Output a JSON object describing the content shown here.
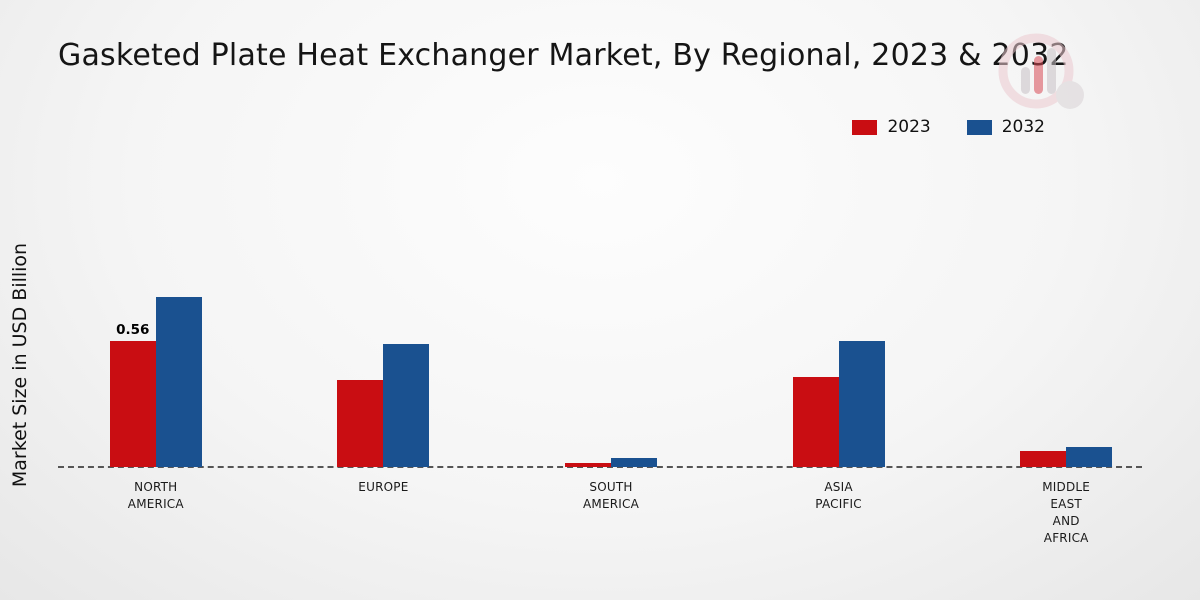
{
  "header": {
    "title": "Gasketed Plate Heat Exchanger Market, By Regional, 2023 & 2032"
  },
  "icons": {
    "brand_logo": "bar-chart-circle-watermark"
  },
  "colors": {
    "series_2023": "#c90d12",
    "series_2032": "#1a5190",
    "footer_red_band": "#c60b10",
    "footer_navy_band": "#1b2e6b",
    "baseline": "#555555"
  },
  "chart_data": {
    "type": "bar",
    "title": "Gasketed Plate Heat Exchanger Market, By Regional, 2023 & 2032",
    "ylabel": "Market Size in USD Billion",
    "xlabel": "",
    "ylim": [
      0,
      1.07
    ],
    "grid": false,
    "legend_position": "top-right",
    "baseline_style": "dashed-zero-line",
    "categories": [
      "NORTH AMERICA",
      "EUROPE",
      "SOUTH AMERICA",
      "ASIA PACIFIC",
      "MIDDLE EAST AND AFRICA"
    ],
    "category_lines": [
      [
        "NORTH",
        "AMERICA"
      ],
      [
        "EUROPE"
      ],
      [
        "SOUTH",
        "AMERICA"
      ],
      [
        "ASIA",
        "PACIFIC"
      ],
      [
        "MIDDLE",
        "EAST",
        "AND",
        "AFRICA"
      ]
    ],
    "series": [
      {
        "name": "2023",
        "color": "#c90d12",
        "values": [
          0.56,
          0.39,
          0.02,
          0.4,
          0.07
        ]
      },
      {
        "name": "2032",
        "color": "#1a5190",
        "values": [
          0.76,
          0.55,
          0.04,
          0.56,
          0.09
        ]
      }
    ],
    "data_labels": [
      {
        "series_index": 0,
        "category_index": 0,
        "text": "0.56"
      }
    ]
  }
}
